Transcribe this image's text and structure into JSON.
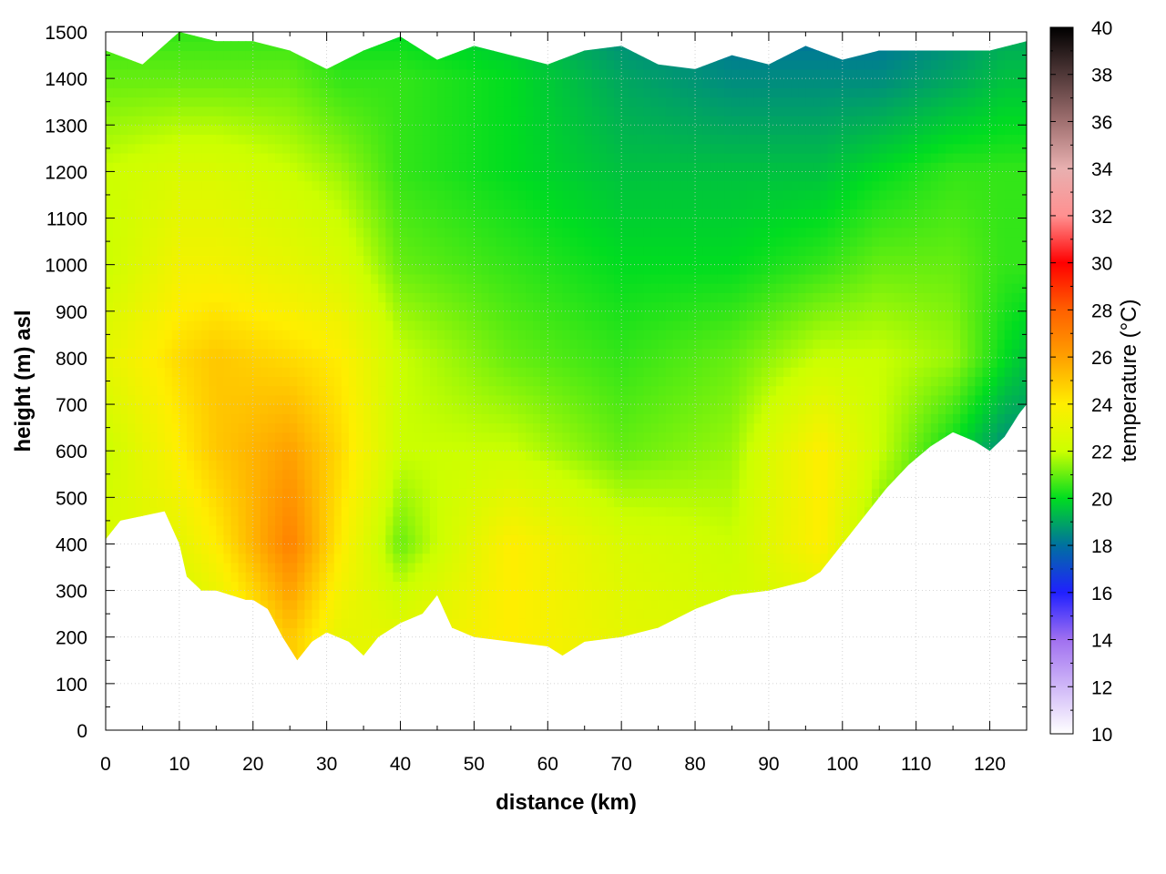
{
  "chart_data": {
    "type": "heatmap",
    "title": "",
    "xlabel": "distance (km)",
    "ylabel": "height (m) asl",
    "xlim": [
      0,
      125
    ],
    "ylim": [
      0,
      1500
    ],
    "xticks": [
      0,
      10,
      20,
      30,
      40,
      50,
      60,
      70,
      80,
      90,
      100,
      110,
      120
    ],
    "yticks": [
      0,
      100,
      200,
      300,
      400,
      500,
      600,
      700,
      800,
      900,
      1000,
      1100,
      1200,
      1300,
      1400,
      1500
    ],
    "grid": true,
    "colorbar": {
      "label": "temperature (°C)",
      "range": [
        10,
        40
      ],
      "ticks": [
        10,
        12,
        14,
        16,
        18,
        20,
        22,
        24,
        26,
        28,
        30,
        32,
        34,
        36,
        38,
        40
      ],
      "stops": [
        {
          "value": 10,
          "color": "#ffffff"
        },
        {
          "value": 14,
          "color": "#a070f0"
        },
        {
          "value": 16,
          "color": "#2020ff"
        },
        {
          "value": 18,
          "color": "#0070a0"
        },
        {
          "value": 20,
          "color": "#00dd20"
        },
        {
          "value": 22,
          "color": "#ccff00"
        },
        {
          "value": 24,
          "color": "#ffee00"
        },
        {
          "value": 26,
          "color": "#ffa000"
        },
        {
          "value": 28,
          "color": "#ff6000"
        },
        {
          "value": 30,
          "color": "#ff0000"
        },
        {
          "value": 32,
          "color": "#ff9090"
        },
        {
          "value": 34,
          "color": "#e8b0b0"
        },
        {
          "value": 36,
          "color": "#a07070"
        },
        {
          "value": 38,
          "color": "#503838"
        },
        {
          "value": 40,
          "color": "#000000"
        }
      ]
    },
    "terrain_bottom": {
      "x": [
        0,
        2,
        5,
        8,
        10,
        11,
        13,
        15,
        17,
        19,
        20,
        22,
        24,
        26,
        28,
        30,
        33,
        35,
        37,
        40,
        43,
        45,
        47,
        50,
        55,
        60,
        62,
        65,
        70,
        75,
        80,
        85,
        90,
        95,
        97,
        100,
        103,
        106,
        109,
        112,
        115,
        118,
        120,
        122,
        124,
        125
      ],
      "y": [
        410,
        450,
        460,
        470,
        400,
        330,
        300,
        300,
        290,
        280,
        280,
        260,
        200,
        150,
        190,
        210,
        190,
        160,
        200,
        230,
        250,
        290,
        220,
        200,
        190,
        180,
        160,
        190,
        200,
        220,
        260,
        290,
        300,
        320,
        340,
        400,
        460,
        520,
        570,
        610,
        640,
        620,
        600,
        630,
        680,
        700
      ]
    },
    "top_edge": {
      "x": [
        0,
        5,
        10,
        15,
        20,
        25,
        30,
        35,
        40,
        45,
        50,
        55,
        60,
        65,
        70,
        75,
        80,
        85,
        90,
        95,
        100,
        105,
        110,
        115,
        120,
        125
      ],
      "y": [
        1460,
        1430,
        1500,
        1480,
        1480,
        1460,
        1420,
        1460,
        1490,
        1440,
        1470,
        1450,
        1430,
        1460,
        1470,
        1430,
        1420,
        1450,
        1430,
        1470,
        1440,
        1460,
        1460,
        1460,
        1460,
        1480
      ]
    },
    "temperature_samples": {
      "x": [
        0,
        10,
        15,
        25,
        32,
        40,
        55,
        70,
        85,
        97,
        105,
        115,
        122,
        125
      ],
      "profiles": [
        {
          "height": 200,
          "t": [
            22,
            22,
            22.5,
            25,
            23,
            23,
            24,
            23,
            22.5,
            22,
            22,
            21,
            20,
            20
          ]
        },
        {
          "height": 400,
          "t": [
            22.5,
            23,
            24,
            27,
            24,
            21,
            24,
            22.5,
            22,
            24,
            21,
            20,
            19,
            19
          ]
        },
        {
          "height": 600,
          "t": [
            22,
            24,
            25,
            26,
            24.5,
            22,
            22,
            21,
            21.5,
            24,
            22,
            20,
            18.5,
            18.5
          ]
        },
        {
          "height": 800,
          "t": [
            23,
            24.5,
            25,
            24.5,
            24,
            22,
            21,
            20.5,
            21,
            22,
            22,
            21.5,
            20,
            19.5
          ]
        },
        {
          "height": 1000,
          "t": [
            22,
            23.5,
            23.5,
            23,
            22.5,
            21,
            20.5,
            20,
            20,
            20.5,
            21,
            21,
            20.5,
            20.5
          ]
        },
        {
          "height": 1200,
          "t": [
            22,
            22.5,
            22.5,
            22,
            21.5,
            20.5,
            20,
            19.5,
            19.5,
            19.5,
            20,
            20.5,
            20.5,
            20.5
          ]
        },
        {
          "height": 1400,
          "t": [
            21,
            21,
            21,
            21,
            20.5,
            20.5,
            20,
            19,
            18.5,
            18.5,
            18.5,
            19,
            19.5,
            19.5
          ]
        },
        {
          "height": 1500,
          "t": [
            20.5,
            20.5,
            20.5,
            20.5,
            20,
            20,
            19.5,
            18.5,
            18,
            18,
            18,
            18.5,
            19,
            19
          ]
        }
      ]
    }
  }
}
